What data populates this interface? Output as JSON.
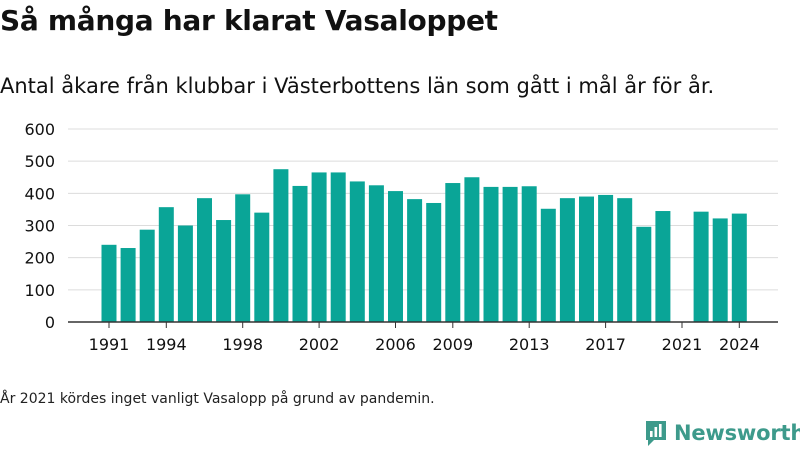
{
  "title": "Så många har klarat Vasaloppet",
  "subtitle": "Antal åkare från klubbar i Västerbottens län som gått i mål år för år.",
  "footnote": "År 2021 kördes inget vanligt Vasalopp på grund av pandemin.",
  "brand": {
    "name": "Newsworthy",
    "icon": "newsworthy-logo-icon",
    "color": "#3d9a8b"
  },
  "colors": {
    "bar": "#0aa597",
    "grid": "#dcdcdc",
    "axis": "#333333",
    "text": "#111111"
  },
  "chart_data": {
    "type": "bar",
    "title": "Så många har klarat Vasaloppet",
    "xlabel": "",
    "ylabel": "",
    "ylim": [
      0,
      600
    ],
    "yticks": [
      0,
      100,
      200,
      300,
      400,
      500,
      600
    ],
    "xtick_labels": [
      "1991",
      "1994",
      "1998",
      "2002",
      "2006",
      "2009",
      "2013",
      "2017",
      "2021",
      "2024"
    ],
    "grid": true,
    "categories": [
      1991,
      1992,
      1993,
      1994,
      1995,
      1996,
      1997,
      1998,
      1999,
      2000,
      2001,
      2002,
      2003,
      2004,
      2005,
      2006,
      2007,
      2008,
      2009,
      2010,
      2011,
      2012,
      2013,
      2014,
      2015,
      2016,
      2017,
      2018,
      2019,
      2020,
      2021,
      2022,
      2023,
      2024
    ],
    "values": [
      240,
      230,
      287,
      357,
      300,
      385,
      317,
      397,
      340,
      475,
      423,
      465,
      465,
      437,
      425,
      407,
      382,
      370,
      432,
      450,
      420,
      420,
      422,
      352,
      385,
      390,
      395,
      385,
      296,
      345,
      null,
      343,
      322,
      337
    ]
  }
}
